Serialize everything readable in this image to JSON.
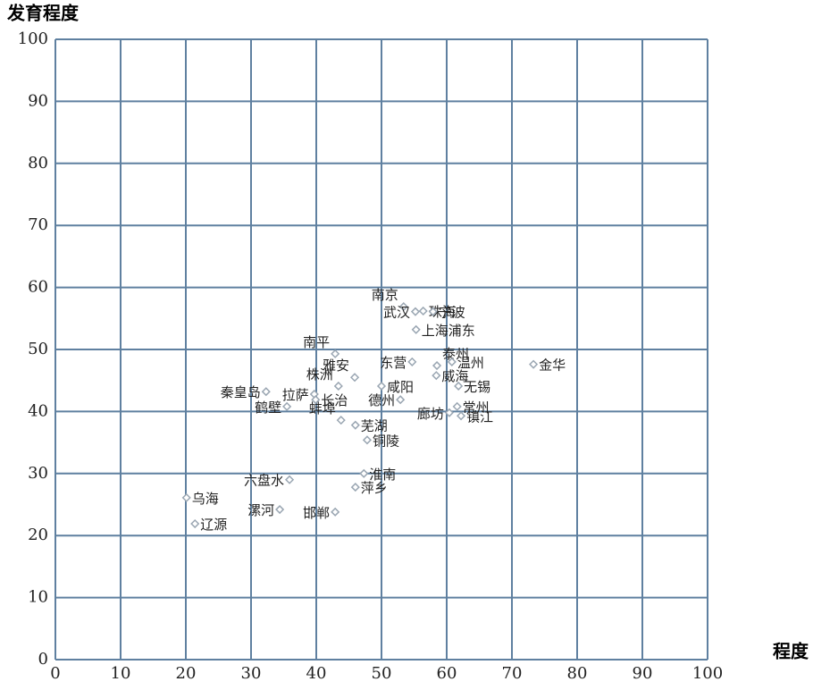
{
  "chart_data": {
    "type": "scatter",
    "ylabel": "发育程度",
    "xlabel": "程度",
    "xlim": [
      0,
      100
    ],
    "ylim": [
      0,
      100
    ],
    "xticks": [
      0,
      10,
      20,
      30,
      40,
      50,
      60,
      70,
      80,
      90,
      100
    ],
    "yticks": [
      0,
      10,
      20,
      30,
      40,
      50,
      60,
      70,
      80,
      90,
      100
    ],
    "grid": true,
    "grid_color": "#5f80a0",
    "marker_color": "#9aa6b2",
    "ref_x": 50,
    "ref_y": 50,
    "labels": [
      "南京",
      "武汉",
      "珠海",
      "宁波",
      "上海浦东",
      "南平",
      "东营",
      "泰州",
      "温州",
      "金华",
      "秦皇岛",
      "拉萨",
      "株洲",
      "雅安",
      "长治",
      "咸阳",
      "德州",
      "威海",
      "无锡",
      "常州",
      "廊坊",
      "镇江",
      "鹤壁",
      "蚌埠",
      "芜湖",
      "铜陵",
      "淮南",
      "六盘水",
      "萍乡",
      "漯河",
      "邯郸",
      "乌海",
      "辽源"
    ],
    "x": [
      53.4,
      55.2,
      56.4,
      57.9,
      55.3,
      42.9,
      54.7,
      58.5,
      60.8,
      73.3,
      32.3,
      39.7,
      43.4,
      45.9,
      39.9,
      50.0,
      52.9,
      58.4,
      61.8,
      61.6,
      60.4,
      62.2,
      35.5,
      43.8,
      46.0,
      47.8,
      47.3,
      35.9,
      46.0,
      34.4,
      42.9,
      20.1,
      21.4
    ],
    "values": [
      56.9,
      56.1,
      56.2,
      56.1,
      53.2,
      49.3,
      48.0,
      47.4,
      48.0,
      47.6,
      43.2,
      42.8,
      44.1,
      45.5,
      41.9,
      44.1,
      41.9,
      45.8,
      44.1,
      40.8,
      39.8,
      39.3,
      40.8,
      38.6,
      37.8,
      35.4,
      30.0,
      29.0,
      27.8,
      24.2,
      23.8,
      26.1,
      21.9
    ]
  }
}
